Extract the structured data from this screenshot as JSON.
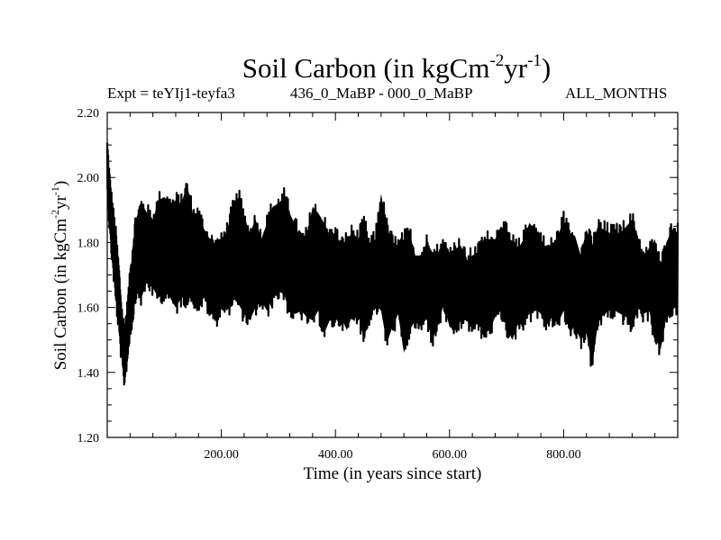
{
  "header": {
    "title_main": "Soil Carbon (in kgCm",
    "title_sup1": "-2",
    "title_mid": "yr",
    "title_sup2": "-1",
    "title_end": ")",
    "expt_label": "Expt = teYIj1-teyfa3",
    "period_label": "436_0_MaBP - 000_0_MaBP",
    "months_label": "ALL_MONTHS"
  },
  "chart_data": {
    "type": "line",
    "title": "Soil Carbon (in kgCm-2yr-1)",
    "xlabel": "Time (in years since start)",
    "ylabel": "Soil Carbon (in kgCm-2yr-1)",
    "xlim": [
      0,
      1000
    ],
    "ylim": [
      1.2,
      2.2
    ],
    "xticks": [
      200,
      400,
      600,
      800
    ],
    "xtick_labels": [
      "200.00",
      "400.00",
      "600.00",
      "800.00"
    ],
    "yticks": [
      1.2,
      1.4,
      1.6,
      1.8,
      2.0,
      2.2
    ],
    "ytick_labels": [
      "1.20",
      "1.40",
      "1.60",
      "1.80",
      "2.00",
      "2.20"
    ],
    "series": [
      {
        "name": "Soil Carbon",
        "color": "#000000",
        "x": [
          0,
          5,
          10,
          15,
          20,
          25,
          30,
          35,
          40,
          45,
          50,
          60,
          70,
          80,
          90,
          100,
          110,
          120,
          130,
          140,
          150,
          160,
          170,
          180,
          190,
          200,
          210,
          220,
          230,
          240,
          250,
          260,
          270,
          280,
          290,
          300,
          310,
          320,
          330,
          340,
          350,
          360,
          370,
          380,
          390,
          400,
          410,
          420,
          430,
          440,
          450,
          460,
          470,
          480,
          490,
          500,
          510,
          520,
          530,
          540,
          550,
          560,
          570,
          580,
          590,
          600,
          610,
          620,
          630,
          640,
          650,
          660,
          670,
          680,
          690,
          700,
          710,
          720,
          730,
          740,
          750,
          760,
          770,
          780,
          790,
          800,
          810,
          820,
          830,
          840,
          850,
          860,
          870,
          880,
          890,
          900,
          910,
          920,
          930,
          940,
          950,
          960,
          970,
          980,
          990,
          1000
        ],
        "upper": [
          2.12,
          2.0,
          1.92,
          1.85,
          1.75,
          1.62,
          1.55,
          1.62,
          1.72,
          1.82,
          1.9,
          1.95,
          1.92,
          1.9,
          1.96,
          1.97,
          1.95,
          1.96,
          1.95,
          2.01,
          1.92,
          1.92,
          1.87,
          1.84,
          1.82,
          1.83,
          1.87,
          1.93,
          1.97,
          1.91,
          1.86,
          1.9,
          1.84,
          1.89,
          1.94,
          1.95,
          1.97,
          1.92,
          1.88,
          1.84,
          1.85,
          1.94,
          1.92,
          1.89,
          1.85,
          1.86,
          1.82,
          1.84,
          1.86,
          1.84,
          1.89,
          1.82,
          1.84,
          1.98,
          1.88,
          1.83,
          1.82,
          1.84,
          1.86,
          1.79,
          1.79,
          1.83,
          1.8,
          1.8,
          1.82,
          1.8,
          1.81,
          1.82,
          1.77,
          1.79,
          1.8,
          1.84,
          1.84,
          1.84,
          1.88,
          1.86,
          1.83,
          1.81,
          1.84,
          1.89,
          1.87,
          1.84,
          1.81,
          1.82,
          1.85,
          1.9,
          1.86,
          1.85,
          1.79,
          1.87,
          1.82,
          1.88,
          1.87,
          1.86,
          1.86,
          1.86,
          1.88,
          1.9,
          1.85,
          1.78,
          1.8,
          1.84,
          1.75,
          1.83,
          1.87,
          1.86
        ],
        "lower": [
          1.95,
          1.8,
          1.7,
          1.6,
          1.52,
          1.42,
          1.35,
          1.42,
          1.5,
          1.55,
          1.62,
          1.6,
          1.65,
          1.63,
          1.6,
          1.62,
          1.6,
          1.57,
          1.6,
          1.6,
          1.6,
          1.58,
          1.6,
          1.56,
          1.53,
          1.58,
          1.56,
          1.6,
          1.58,
          1.55,
          1.53,
          1.57,
          1.59,
          1.56,
          1.6,
          1.62,
          1.61,
          1.56,
          1.55,
          1.56,
          1.54,
          1.53,
          1.56,
          1.49,
          1.53,
          1.53,
          1.54,
          1.5,
          1.55,
          1.55,
          1.47,
          1.55,
          1.58,
          1.56,
          1.46,
          1.51,
          1.55,
          1.43,
          1.5,
          1.53,
          1.51,
          1.54,
          1.47,
          1.52,
          1.58,
          1.51,
          1.5,
          1.53,
          1.53,
          1.51,
          1.52,
          1.49,
          1.5,
          1.54,
          1.56,
          1.51,
          1.47,
          1.52,
          1.53,
          1.55,
          1.57,
          1.55,
          1.52,
          1.54,
          1.52,
          1.56,
          1.5,
          1.51,
          1.47,
          1.49,
          1.39,
          1.52,
          1.55,
          1.56,
          1.56,
          1.55,
          1.54,
          1.5,
          1.57,
          1.55,
          1.56,
          1.48,
          1.44,
          1.54,
          1.56,
          1.58
        ]
      }
    ]
  }
}
